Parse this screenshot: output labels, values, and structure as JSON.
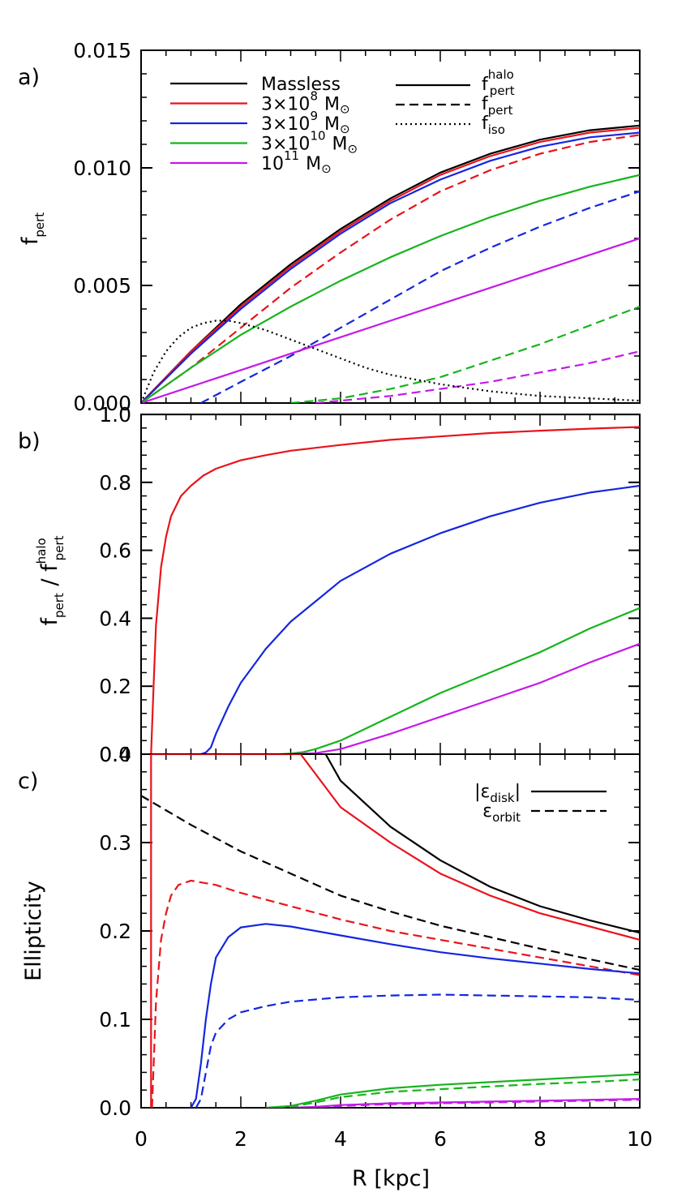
{
  "chart_data": [
    {
      "panel": "a)",
      "type": "line",
      "ylabel": "f",
      "ylabel_sub": "pert",
      "xlim": [
        0,
        10
      ],
      "ylim": [
        0,
        0.015
      ],
      "yticks": [
        "0.000",
        "0.005",
        "0.010",
        "0.015"
      ],
      "legend_left": {
        "position": "top-left",
        "entries": [
          {
            "text": "Massless",
            "color": "#000000"
          },
          {
            "text": "3×10",
            "sup": "8",
            "unit": "M",
            "color": "#e8141c"
          },
          {
            "text": "3×10",
            "sup": "9",
            "unit": "M",
            "color": "#1426e0"
          },
          {
            "text": "3×10",
            "sup": "10",
            "unit": "M",
            "color": "#16b41c"
          },
          {
            "text": "10",
            "sup": "11",
            "unit": "M",
            "color": "#c41ae8"
          }
        ]
      },
      "legend_right": {
        "position": "top-right",
        "entries": [
          {
            "text": "f",
            "sub": "pert",
            "sup": "halo",
            "style": "solid"
          },
          {
            "text": "f",
            "sub": "pert",
            "style": "dashed"
          },
          {
            "text": "f",
            "sub": "iso",
            "style": "dotted"
          }
        ]
      },
      "series": [
        {
          "color": "#000000",
          "style": "solid",
          "x": [
            0,
            1,
            2,
            3,
            4,
            5,
            6,
            7,
            8,
            9,
            10
          ],
          "y": [
            0,
            0.0022,
            0.0042,
            0.0059,
            0.0074,
            0.0087,
            0.0098,
            0.0106,
            0.0112,
            0.0116,
            0.0118
          ]
        },
        {
          "color": "#e8141c",
          "style": "solid",
          "x": [
            0,
            1,
            2,
            3,
            4,
            5,
            6,
            7,
            8,
            9,
            10
          ],
          "y": [
            0,
            0.0022,
            0.0041,
            0.0058,
            0.0073,
            0.0086,
            0.0097,
            0.0105,
            0.0111,
            0.0115,
            0.0117
          ]
        },
        {
          "color": "#e8141c",
          "style": "dashed",
          "x": [
            0,
            1,
            2,
            3,
            4,
            5,
            6,
            7,
            8,
            9,
            10
          ],
          "y": [
            0,
            0.0015,
            0.0032,
            0.0049,
            0.0064,
            0.0078,
            0.009,
            0.0099,
            0.0106,
            0.0111,
            0.0114
          ]
        },
        {
          "color": "#1426e0",
          "style": "solid",
          "x": [
            0,
            1,
            2,
            3,
            4,
            5,
            6,
            7,
            8,
            9,
            10
          ],
          "y": [
            0,
            0.0021,
            0.004,
            0.0057,
            0.0072,
            0.0085,
            0.0095,
            0.0103,
            0.0109,
            0.0113,
            0.0115
          ]
        },
        {
          "color": "#1426e0",
          "style": "dashed",
          "x": [
            1.2,
            2,
            3,
            4,
            5,
            6,
            7,
            8,
            9,
            10
          ],
          "y": [
            0,
            0.0009,
            0.002,
            0.0032,
            0.0044,
            0.0056,
            0.0066,
            0.0075,
            0.0083,
            0.009
          ]
        },
        {
          "color": "#16b41c",
          "style": "solid",
          "x": [
            0,
            1,
            2,
            3,
            4,
            5,
            6,
            7,
            8,
            9,
            10
          ],
          "y": [
            0,
            0.0015,
            0.0029,
            0.0041,
            0.0052,
            0.0062,
            0.0071,
            0.0079,
            0.0086,
            0.0092,
            0.0097
          ]
        },
        {
          "color": "#16b41c",
          "style": "dashed",
          "x": [
            3,
            4,
            5,
            6,
            7,
            8,
            9,
            10
          ],
          "y": [
            0,
            0.0002,
            0.0006,
            0.0011,
            0.0018,
            0.0025,
            0.0033,
            0.0041
          ]
        },
        {
          "color": "#c41ae8",
          "style": "solid",
          "x": [
            0,
            1,
            2,
            3,
            4,
            5,
            6,
            7,
            8,
            9,
            10
          ],
          "y": [
            0,
            0.0007,
            0.0014,
            0.0021,
            0.0028,
            0.0035,
            0.0042,
            0.0049,
            0.0056,
            0.0063,
            0.007
          ]
        },
        {
          "color": "#c41ae8",
          "style": "dashed",
          "x": [
            3.5,
            4,
            5,
            6,
            7,
            8,
            9,
            10
          ],
          "y": [
            0,
            0.0001,
            0.0003,
            0.0006,
            0.0009,
            0.0013,
            0.0017,
            0.0022
          ]
        },
        {
          "color": "#000000",
          "style": "dotted",
          "x": [
            0,
            0.25,
            0.5,
            0.75,
            1,
            1.25,
            1.5,
            1.75,
            2,
            2.5,
            3,
            3.5,
            4,
            4.5,
            5,
            6,
            7,
            8,
            9,
            10
          ],
          "y": [
            0,
            0.0013,
            0.0022,
            0.0028,
            0.0032,
            0.0034,
            0.0035,
            0.0035,
            0.0034,
            0.0031,
            0.0027,
            0.0023,
            0.0019,
            0.0015,
            0.0012,
            0.0008,
            0.0005,
            0.0003,
            0.0002,
            0.0001
          ]
        }
      ]
    },
    {
      "panel": "b)",
      "type": "line",
      "ylabel": "f",
      "ylabel_sub": "pert",
      "ylabel_mid": " / ",
      "ylabel2": "f",
      "ylabel2_sub": "pert",
      "ylabel2_sup": "halo",
      "xlim": [
        0,
        10
      ],
      "ylim": [
        0,
        1.0
      ],
      "yticks": [
        "0.0",
        "0.2",
        "0.4",
        "0.6",
        "0.8",
        "1.0"
      ],
      "series": [
        {
          "color": "#000000",
          "style": "solid",
          "x": [
            0,
            10
          ],
          "y": [
            1.0,
            1.0
          ]
        },
        {
          "color": "#e8141c",
          "style": "solid",
          "x": [
            0.2,
            0.25,
            0.3,
            0.4,
            0.5,
            0.6,
            0.8,
            1,
            1.25,
            1.5,
            2,
            2.5,
            3,
            4,
            5,
            6,
            7,
            8,
            9,
            10
          ],
          "y": [
            0,
            0.2,
            0.38,
            0.55,
            0.64,
            0.7,
            0.76,
            0.79,
            0.82,
            0.84,
            0.865,
            0.88,
            0.893,
            0.91,
            0.925,
            0.935,
            0.945,
            0.952,
            0.958,
            0.963
          ]
        },
        {
          "color": "#1426e0",
          "style": "solid",
          "x": [
            1.2,
            1.3,
            1.4,
            1.5,
            1.75,
            2,
            2.5,
            3,
            3.5,
            4,
            5,
            6,
            7,
            8,
            9,
            10
          ],
          "y": [
            0,
            0.005,
            0.02,
            0.06,
            0.14,
            0.21,
            0.31,
            0.39,
            0.45,
            0.51,
            0.59,
            0.65,
            0.7,
            0.74,
            0.77,
            0.79
          ]
        },
        {
          "color": "#16b41c",
          "style": "solid",
          "x": [
            2.8,
            3,
            3.25,
            3.5,
            4,
            5,
            6,
            7,
            8,
            9,
            10
          ],
          "y": [
            0,
            0.002,
            0.006,
            0.015,
            0.04,
            0.11,
            0.18,
            0.24,
            0.3,
            0.37,
            0.43
          ]
        },
        {
          "color": "#c41ae8",
          "style": "solid",
          "x": [
            3.0,
            3.5,
            4,
            5,
            6,
            7,
            8,
            9,
            10
          ],
          "y": [
            0,
            0.003,
            0.015,
            0.06,
            0.11,
            0.16,
            0.21,
            0.27,
            0.325
          ]
        }
      ]
    },
    {
      "panel": "c)",
      "type": "line",
      "xlabel": "R [kpc]",
      "ylabel": "Ellipticity",
      "xlim": [
        0,
        10
      ],
      "ylim": [
        0,
        0.4
      ],
      "xticks": [
        "0",
        "2",
        "4",
        "6",
        "8",
        "10"
      ],
      "yticks": [
        "0.0",
        "0.1",
        "0.2",
        "0.3",
        "0.4"
      ],
      "legend": {
        "position": "top-right",
        "entries": [
          {
            "text": "|ε",
            "sub": "disk",
            "text_after": "|",
            "style": "solid"
          },
          {
            "text": "ε",
            "sub": "orbit",
            "style": "dashed"
          }
        ]
      },
      "series": [
        {
          "color": "#000000",
          "style": "solid",
          "x": [
            3.7,
            4,
            5,
            6,
            7,
            8,
            9,
            10
          ],
          "y": [
            0.4,
            0.37,
            0.318,
            0.28,
            0.25,
            0.228,
            0.212,
            0.198
          ]
        },
        {
          "color": "#000000",
          "style": "dashed",
          "x": [
            0,
            1,
            2,
            3,
            4,
            5,
            6,
            7,
            8,
            9,
            10
          ],
          "y": [
            0.353,
            0.32,
            0.29,
            0.265,
            0.24,
            0.222,
            0.206,
            0.193,
            0.18,
            0.168,
            0.156
          ]
        },
        {
          "color": "#e8141c",
          "style": "solid",
          "x": [
            0.2,
            0.2,
            3.2,
            4,
            5,
            6,
            7,
            8,
            9,
            10
          ],
          "y": [
            0,
            0.4,
            0.4,
            0.34,
            0.3,
            0.265,
            0.24,
            0.22,
            0.205,
            0.19
          ]
        },
        {
          "color": "#e8141c",
          "style": "dashed",
          "x": [
            0.22,
            0.3,
            0.4,
            0.5,
            0.6,
            0.75,
            1,
            1.5,
            2,
            3,
            4,
            5,
            6,
            7,
            8,
            9,
            10
          ],
          "y": [
            0,
            0.12,
            0.19,
            0.22,
            0.24,
            0.252,
            0.257,
            0.252,
            0.243,
            0.228,
            0.213,
            0.2,
            0.19,
            0.18,
            0.17,
            0.16,
            0.15
          ]
        },
        {
          "color": "#1426e0",
          "style": "solid",
          "x": [
            1.0,
            1.1,
            1.2,
            1.3,
            1.4,
            1.5,
            1.75,
            2,
            2.5,
            3,
            4,
            5,
            6,
            7,
            8,
            9,
            10
          ],
          "y": [
            0,
            0.01,
            0.05,
            0.1,
            0.14,
            0.17,
            0.193,
            0.204,
            0.208,
            0.205,
            0.195,
            0.185,
            0.176,
            0.169,
            0.163,
            0.157,
            0.152
          ]
        },
        {
          "color": "#1426e0",
          "style": "dashed",
          "x": [
            1.1,
            1.2,
            1.3,
            1.4,
            1.5,
            1.75,
            2,
            2.5,
            3,
            4,
            5,
            6,
            7,
            8,
            9,
            10
          ],
          "y": [
            0,
            0.01,
            0.04,
            0.07,
            0.085,
            0.1,
            0.108,
            0.115,
            0.12,
            0.125,
            0.127,
            0.128,
            0.127,
            0.126,
            0.125,
            0.122
          ]
        },
        {
          "color": "#16b41c",
          "style": "solid",
          "x": [
            2.5,
            3,
            3.5,
            4,
            5,
            6,
            7,
            8,
            9,
            10
          ],
          "y": [
            0,
            0.002,
            0.008,
            0.015,
            0.022,
            0.026,
            0.029,
            0.032,
            0.035,
            0.038
          ]
        },
        {
          "color": "#16b41c",
          "style": "dashed",
          "x": [
            2.7,
            3,
            3.5,
            4,
            5,
            6,
            7,
            8,
            9,
            10
          ],
          "y": [
            0,
            0.001,
            0.006,
            0.012,
            0.018,
            0.021,
            0.024,
            0.027,
            0.029,
            0.032
          ]
        },
        {
          "color": "#c41ae8",
          "style": "solid",
          "x": [
            3,
            3.5,
            4,
            5,
            6,
            7,
            8,
            9,
            10
          ],
          "y": [
            0,
            0.001,
            0.003,
            0.005,
            0.006,
            0.007,
            0.008,
            0.009,
            0.01
          ]
        },
        {
          "color": "#c41ae8",
          "style": "dashed",
          "x": [
            3.3,
            4,
            5,
            6,
            7,
            8,
            9,
            10
          ],
          "y": [
            0,
            0.002,
            0.004,
            0.005,
            0.006,
            0.007,
            0.008,
            0.009
          ]
        }
      ]
    }
  ],
  "shared_x": {
    "xlim": [
      0,
      10
    ],
    "xticks": [
      "0",
      "2",
      "4",
      "6",
      "8",
      "10"
    ],
    "xlabel": "R [kpc]"
  },
  "colors": {
    "massless": "#000000",
    "m3e8": "#e8141c",
    "m3e9": "#1426e0",
    "m3e10": "#16b41c",
    "m1e11": "#c41ae8"
  }
}
